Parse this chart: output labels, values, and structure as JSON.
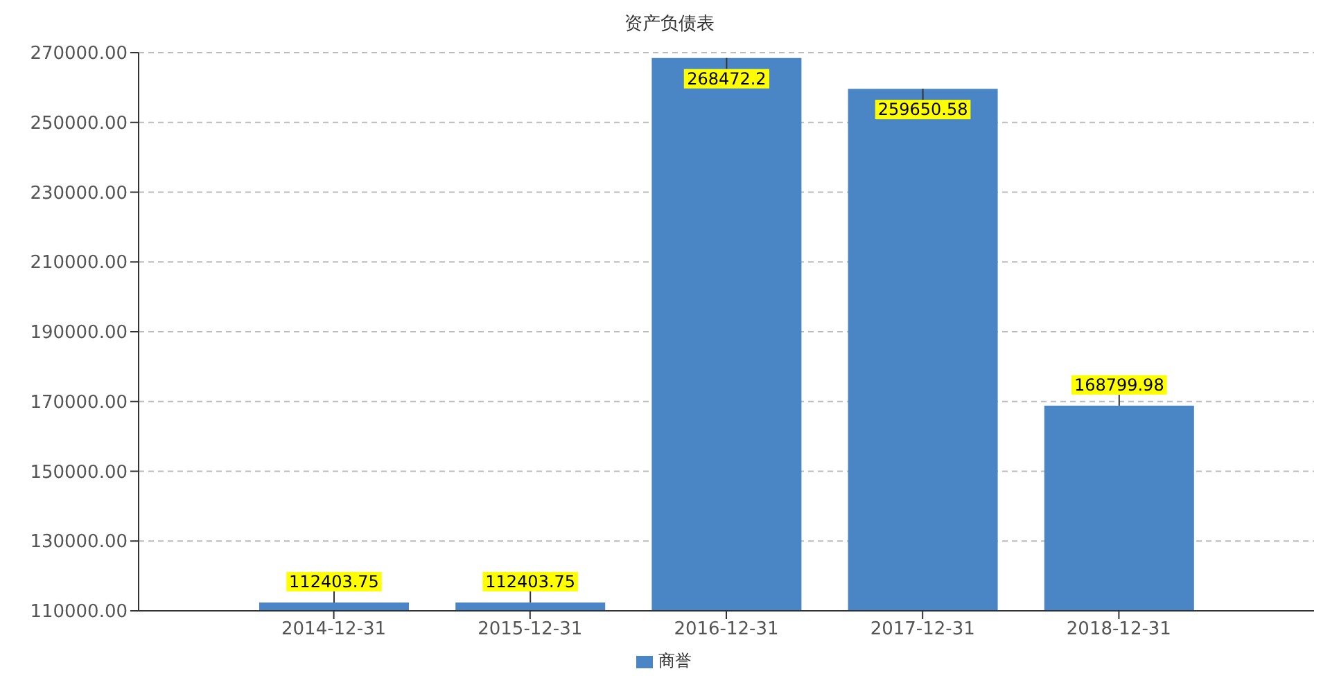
{
  "chart_data": {
    "type": "bar",
    "title": "资产负债表",
    "categories": [
      "2014-12-31",
      "2015-12-31",
      "2016-12-31",
      "2017-12-31",
      "2018-12-31"
    ],
    "series": [
      {
        "name": "商誉",
        "color": "#4a86c5",
        "values": [
          112403.75,
          112403.75,
          268472.2,
          259650.58,
          168799.98
        ]
      }
    ],
    "ylim": [
      110000,
      270000
    ],
    "yticks": [
      {
        "value": 110000,
        "label": "110000.00"
      },
      {
        "value": 130000,
        "label": "130000.00"
      },
      {
        "value": 150000,
        "label": "150000.00"
      },
      {
        "value": 170000,
        "label": "170000.00"
      },
      {
        "value": 190000,
        "label": "190000.00"
      },
      {
        "value": 210000,
        "label": "210000.00"
      },
      {
        "value": 230000,
        "label": "230000.00"
      },
      {
        "value": 250000,
        "label": "250000.00"
      },
      {
        "value": 270000,
        "label": "270000.00"
      }
    ],
    "grid": "y",
    "legend": "bottom",
    "data_labels": true
  }
}
